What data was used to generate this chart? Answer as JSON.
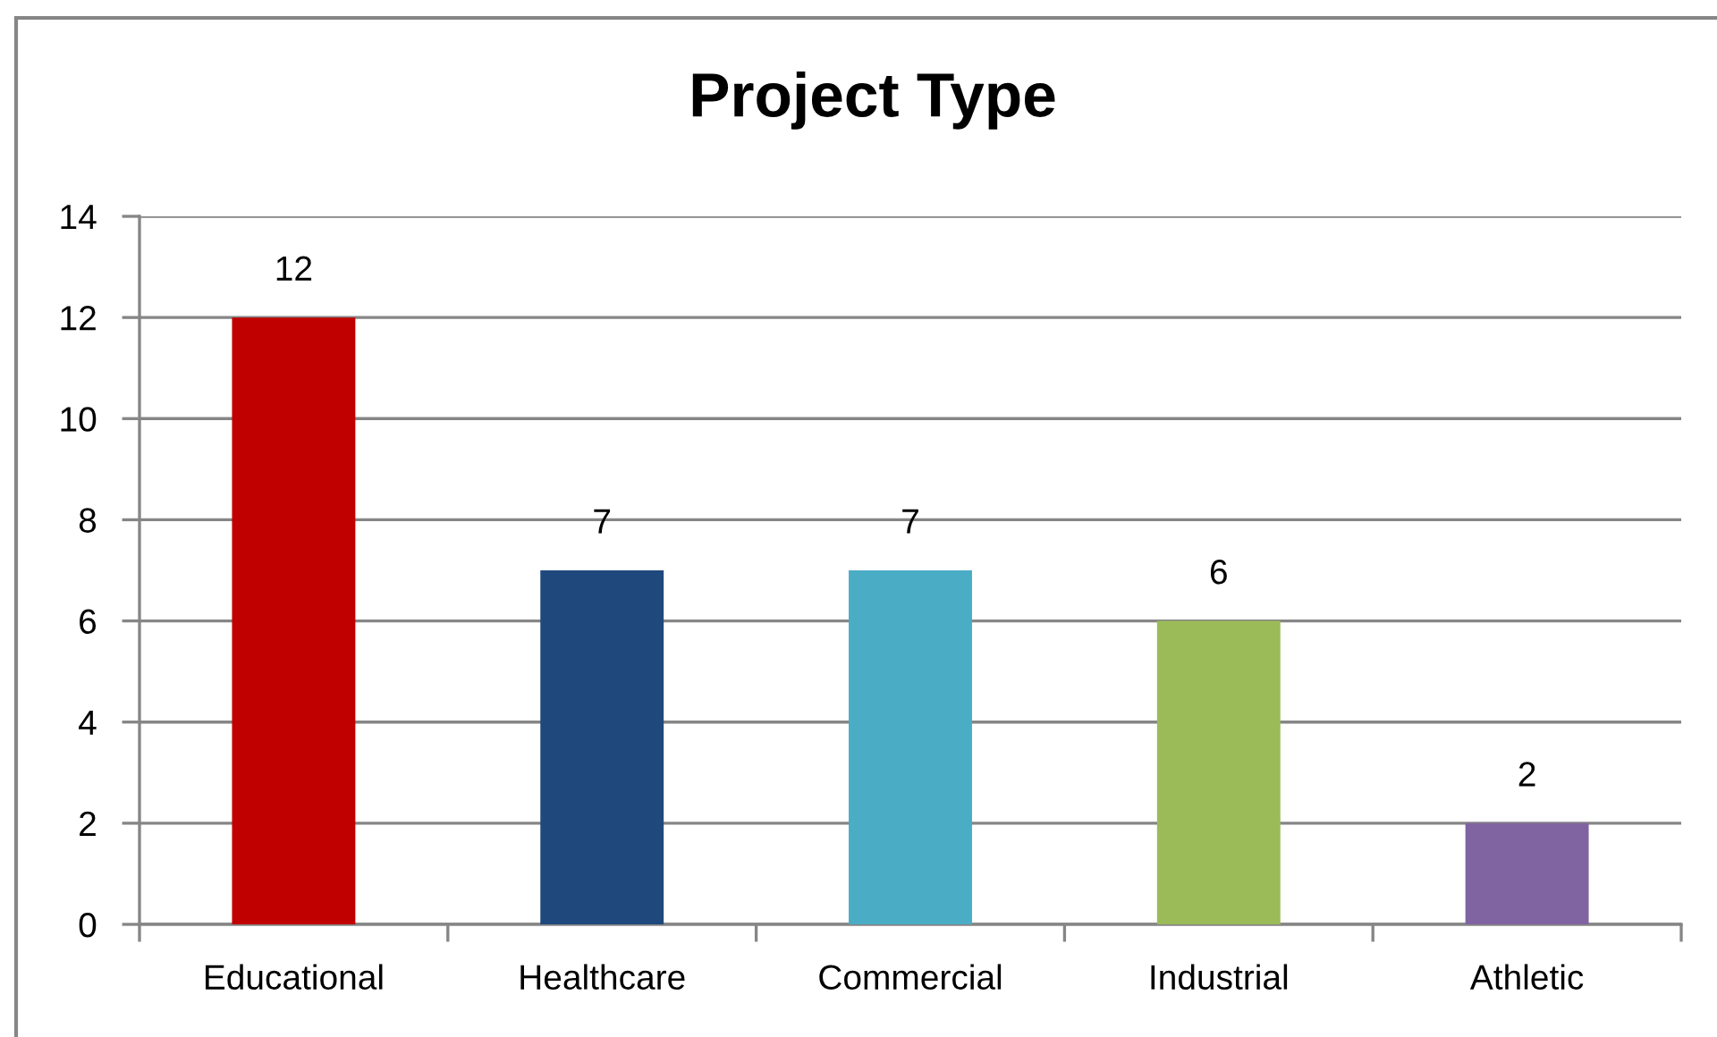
{
  "chart_data": {
    "type": "bar",
    "title": "Project Type",
    "categories": [
      "Educational",
      "Healthcare",
      "Commercial",
      "Industrial",
      "Athletic"
    ],
    "values": [
      12,
      7,
      7,
      6,
      2
    ],
    "colors": [
      "#c00000",
      "#1f497d",
      "#4bacc6",
      "#9bbb59",
      "#8064a2"
    ],
    "ylim": [
      0,
      14
    ],
    "yticks": [
      0,
      2,
      4,
      6,
      8,
      10,
      12,
      14
    ],
    "grid": "y",
    "data_labels": true
  }
}
